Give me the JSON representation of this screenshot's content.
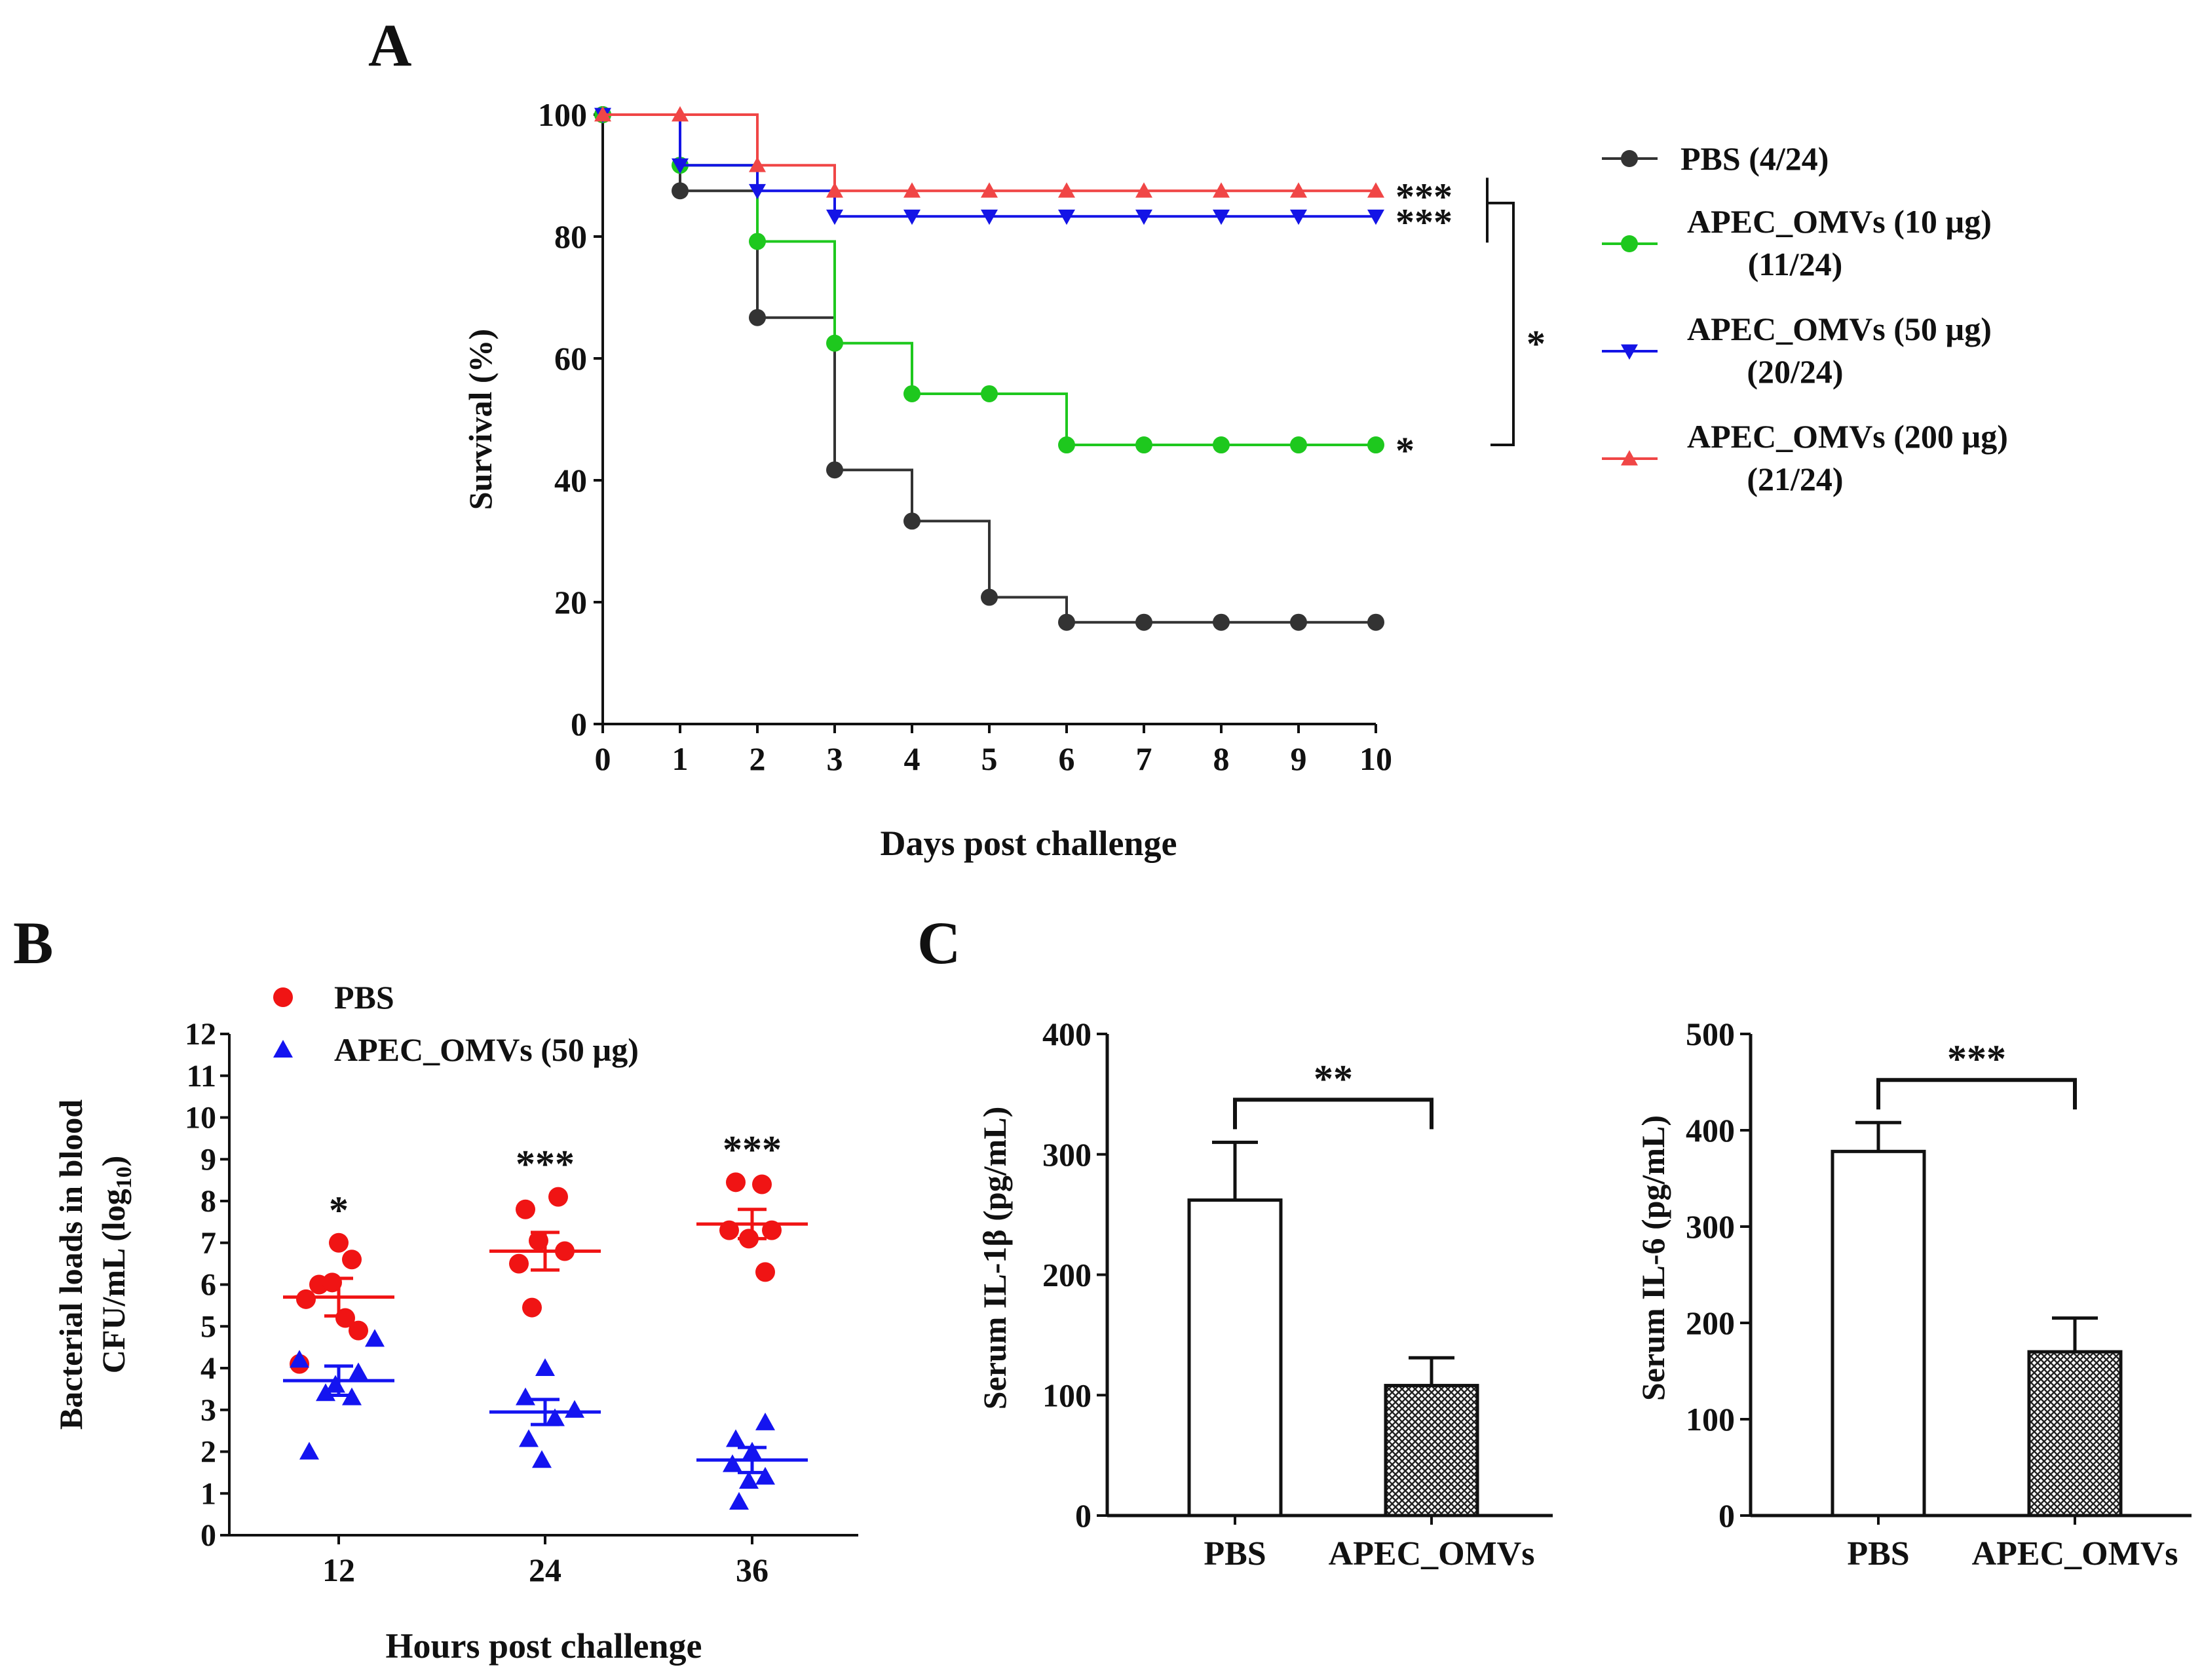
{
  "panels": {
    "a": {
      "letter": "A",
      "chart_data": {
        "type": "line",
        "subtype": "survival-step",
        "xlabel": "Days post challenge",
        "ylabel": "Survival  (%)",
        "x_ticks": [
          "0",
          "1",
          "2",
          "3",
          "4",
          "5",
          "6",
          "7",
          "8",
          "9",
          "10"
        ],
        "y_ticks": [
          "0",
          "20",
          "40",
          "60",
          "80",
          "100"
        ],
        "xlim": [
          0,
          10
        ],
        "ylim": [
          0,
          100
        ],
        "series": [
          {
            "name": "PBS (4/24)",
            "label_lines": [
              "PBS (4/24)"
            ],
            "color": "#333333",
            "marker": "circle",
            "x": [
              0,
              1,
              2,
              3,
              4,
              5,
              6,
              7,
              8,
              9,
              10
            ],
            "y": [
              100,
              87.5,
              66.7,
              41.7,
              33.3,
              20.8,
              16.7,
              16.7,
              16.7,
              16.7,
              16.7
            ]
          },
          {
            "name": "APEC_OMVs (10 µg) (11/24)",
            "label_lines": [
              "APEC_OMVs (10 µg)",
              "(11/24)"
            ],
            "color": "#1ec81e",
            "marker": "circle",
            "x": [
              0,
              1,
              2,
              3,
              4,
              5,
              6,
              7,
              8,
              9,
              10
            ],
            "y": [
              100,
              91.7,
              79.2,
              62.5,
              54.2,
              54.2,
              45.8,
              45.8,
              45.8,
              45.8,
              45.8
            ]
          },
          {
            "name": "APEC_OMVs (50 µg) (20/24)",
            "label_lines": [
              "APEC_OMVs (50 µg)",
              "(20/24)"
            ],
            "color": "#1414e6",
            "marker": "triangle-down",
            "x": [
              0,
              1,
              2,
              3,
              4,
              5,
              6,
              7,
              8,
              9,
              10
            ],
            "y": [
              100,
              91.7,
              87.5,
              83.3,
              83.3,
              83.3,
              83.3,
              83.3,
              83.3,
              83.3,
              83.3
            ]
          },
          {
            "name": "APEC_OMVs (200 µg) (21/24)",
            "label_lines": [
              "APEC_OMVs (200 µg)",
              "(21/24)"
            ],
            "color": "#f04646",
            "marker": "triangle-up",
            "x": [
              0,
              1,
              2,
              3,
              4,
              5,
              6,
              7,
              8,
              9,
              10
            ],
            "y": [
              100,
              100,
              91.7,
              87.5,
              87.5,
              87.5,
              87.5,
              87.5,
              87.5,
              87.5,
              87.5
            ]
          }
        ],
        "annotations": {
          "red": "***",
          "blue": "***",
          "green": "*",
          "bracket": "*"
        }
      }
    },
    "b": {
      "letter": "B",
      "chart_data": {
        "type": "scatter",
        "xlabel": "Hours post challenge",
        "ylabel_lines": [
          "Bacterial loads in blood",
          "CFU/mL (log",
          "10",
          ")"
        ],
        "categories": [
          "12",
          "24",
          "36"
        ],
        "y_ticks": [
          "0",
          "1",
          "2",
          "3",
          "4",
          "5",
          "6",
          "7",
          "8",
          "9",
          "10",
          "11",
          "12"
        ],
        "ylim": [
          0,
          12
        ],
        "series": [
          {
            "name": "PBS",
            "color": "#f01414",
            "marker": "circle",
            "means": [
              5.7,
              6.8,
              7.45
            ],
            "errors": [
              0.45,
              0.45,
              0.35
            ],
            "points": [
              [
                6.0,
                6.05,
                5.65,
                5.2,
                4.9,
                4.1,
                6.6,
                7.0
              ],
              [
                7.8,
                8.1,
                7.05,
                6.8,
                6.5,
                5.45
              ],
              [
                8.45,
                8.4,
                7.3,
                7.3,
                7.1,
                6.3
              ]
            ]
          },
          {
            "name": "APEC_OMVs (50 µg)",
            "color": "#1414f0",
            "marker": "triangle-up",
            "means": [
              3.7,
              2.95,
              1.8
            ],
            "errors": [
              0.35,
              0.3,
              0.3
            ],
            "points": [
              [
                4.2,
                3.9,
                3.6,
                3.4,
                3.3,
                2.0,
                4.7
              ],
              [
                4.0,
                3.3,
                3.0,
                2.8,
                2.3,
                1.8
              ],
              [
                2.3,
                2.7,
                2.0,
                1.7,
                1.4,
                1.3,
                0.8
              ]
            ]
          }
        ],
        "significance": [
          "*",
          "***",
          "***"
        ]
      }
    },
    "c": {
      "letter": "C",
      "charts": [
        {
          "chart_data": {
            "type": "bar",
            "ylabel": "Serum IL-1β (pg/mL)",
            "categories": [
              "PBS",
              "APEC_OMVs"
            ],
            "values": [
              262,
              108
            ],
            "errors": [
              48,
              23
            ],
            "y_ticks": [
              "0",
              "100",
              "200",
              "300",
              "400"
            ],
            "ylim": [
              0,
              400
            ],
            "significance": "**"
          }
        },
        {
          "chart_data": {
            "type": "bar",
            "ylabel": "Serum IL-6 (pg/mL)",
            "categories": [
              "PBS",
              "APEC_OMVs"
            ],
            "values": [
              378,
              170
            ],
            "errors": [
              30,
              35
            ],
            "y_ticks": [
              "0",
              "100",
              "200",
              "300",
              "400",
              "500"
            ],
            "ylim": [
              0,
              500
            ],
            "significance": "***"
          }
        }
      ]
    }
  },
  "colors": {
    "axis": "#111111",
    "hatch_fill": "#c8c8c8"
  }
}
